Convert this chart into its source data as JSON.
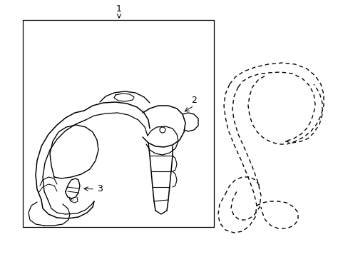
{
  "background_color": "#ffffff",
  "line_color": "#000000",
  "label_1": "1",
  "label_2": "2",
  "label_3": "3",
  "figsize": [
    4.89,
    3.6
  ],
  "dpi": 100
}
